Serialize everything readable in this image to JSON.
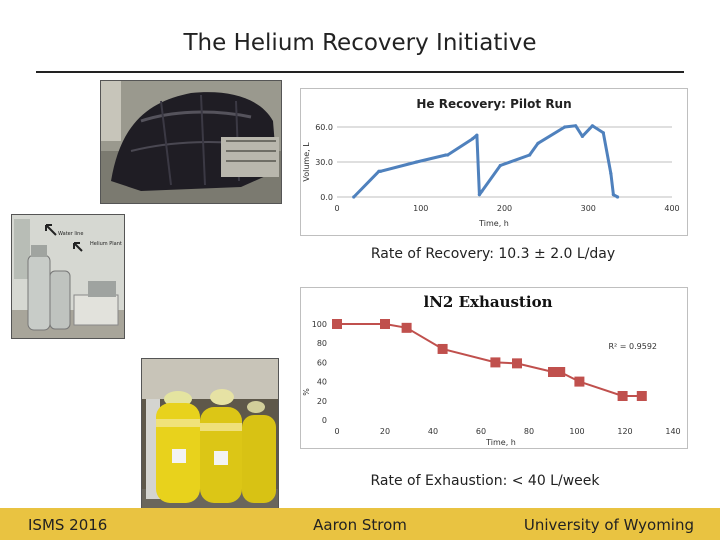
{
  "slide": {
    "title": "The Helium Recovery Initiative",
    "recovery_caption": "Rate of Recovery: 10.3 ± 2.0 L/day",
    "exhaustion_caption": "Rate of Exhaustion: < 40 L/week",
    "photo_labels": [
      "Water line",
      "Helium Plant"
    ]
  },
  "footer": {
    "left": "ISMS 2016",
    "center": "Aaron Strom",
    "right": "University of Wyoming",
    "bar_color": "#e9c341"
  },
  "chart_data": [
    {
      "type": "line",
      "title": "He Recovery: Pilot Run",
      "xlabel": "Time, h",
      "ylabel": "Volume, L",
      "xlim": [
        0,
        400
      ],
      "ylim": [
        0,
        60
      ],
      "x_ticks": [
        "0",
        "100",
        "200",
        "300",
        "400"
      ],
      "y_ticks": [
        "0.0",
        "30.0",
        "60.0"
      ],
      "grid": "horizontal",
      "color": "#4f81bd",
      "series": [
        {
          "x": [
            20,
            50,
            52,
            95,
            130,
            132,
            162,
            167,
            170,
            173,
            195,
            230,
            240,
            272,
            285,
            293,
            305,
            318,
            327,
            330,
            335
          ],
          "y": [
            0,
            22,
            22,
            30,
            36,
            36,
            50,
            53,
            2,
            5,
            27,
            36,
            46,
            60,
            61,
            52,
            61,
            55,
            20,
            2,
            0
          ]
        }
      ]
    },
    {
      "type": "line",
      "title": "lN2 Exhaustion",
      "xlabel": "Time, h",
      "ylabel": "%",
      "xlim": [
        0,
        140
      ],
      "ylim": [
        0,
        100
      ],
      "x_ticks": [
        "0",
        "20",
        "40",
        "60",
        "80",
        "100",
        "120",
        "140"
      ],
      "y_ticks": [
        "0",
        "20",
        "40",
        "60",
        "80",
        "100"
      ],
      "annotation": "R² = 0.9592",
      "grid": "none",
      "color": "#c0504d",
      "series": [
        {
          "x": [
            0,
            20,
            29,
            44,
            66,
            75,
            90,
            93,
            101,
            119,
            127
          ],
          "y": [
            100,
            100,
            96,
            74,
            60,
            59,
            50,
            50,
            40,
            25,
            25
          ]
        }
      ]
    }
  ]
}
